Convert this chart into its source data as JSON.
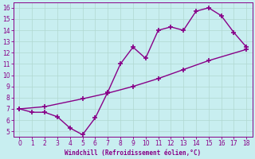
{
  "line1_x": [
    0,
    1,
    2,
    3,
    4,
    5,
    6,
    7,
    8,
    9,
    10,
    11,
    12,
    13,
    14,
    15,
    16,
    17,
    18
  ],
  "line1_y": [
    7.0,
    6.7,
    6.7,
    6.3,
    5.3,
    4.7,
    6.2,
    8.5,
    11.0,
    12.5,
    11.5,
    14.0,
    14.3,
    14.0,
    15.7,
    16.0,
    15.3,
    13.8,
    12.5
  ],
  "line2_x": [
    0,
    2,
    5,
    7,
    9,
    11,
    13,
    15,
    18
  ],
  "line2_y": [
    7.0,
    7.2,
    7.9,
    8.4,
    9.0,
    9.7,
    10.5,
    11.3,
    12.3
  ],
  "line_color": "#880088",
  "bg_color": "#c8eef0",
  "grid_color": "#b0d8d0",
  "xlabel": "Windchill (Refroidissement éolien,°C)",
  "ylim": [
    4.5,
    16.5
  ],
  "xlim": [
    -0.5,
    18.5
  ],
  "yticks": [
    5,
    6,
    7,
    8,
    9,
    10,
    11,
    12,
    13,
    14,
    15,
    16
  ],
  "xticks": [
    0,
    1,
    2,
    3,
    4,
    5,
    6,
    7,
    8,
    9,
    10,
    11,
    12,
    13,
    14,
    15,
    16,
    17,
    18
  ],
  "marker": "+",
  "markersize": 5,
  "linewidth": 1.0,
  "xlabel_color": "#880088",
  "tick_color": "#880088",
  "spine_color": "#880088",
  "tick_labelsize": 5.5
}
